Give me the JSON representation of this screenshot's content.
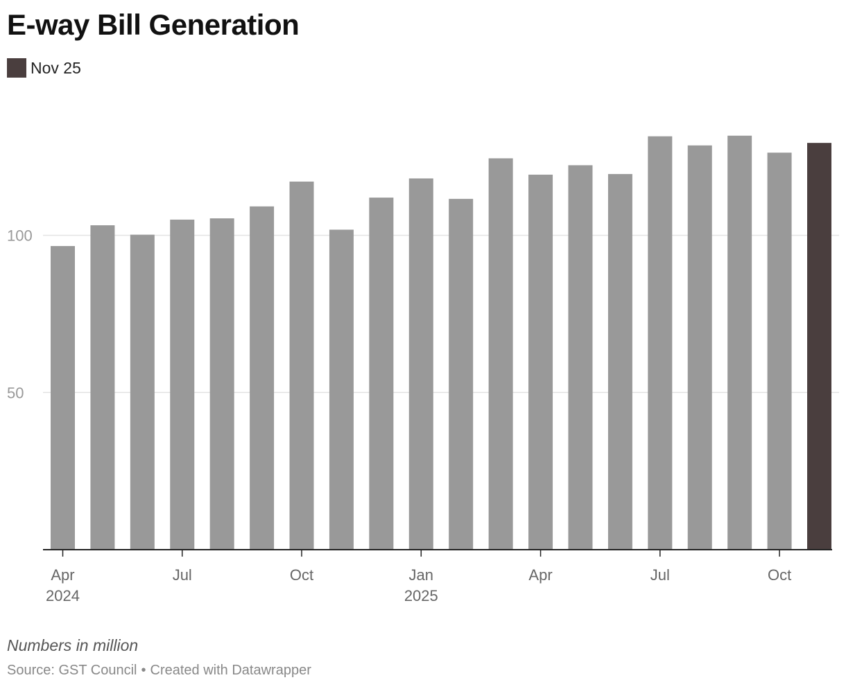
{
  "chart_data": {
    "type": "bar",
    "title": "E-way Bill Generation",
    "legend": [
      {
        "label": "Nov 25",
        "color": "#4a3e3e"
      }
    ],
    "categories": [
      "Apr 2024",
      "May 2024",
      "Jun 2024",
      "Jul 2024",
      "Aug 2024",
      "Sep 2024",
      "Oct 2024",
      "Nov 2024",
      "Dec 2024",
      "Jan 2025",
      "Feb 2025",
      "Mar 2025",
      "Apr 2025",
      "May 2025",
      "Jun 2025",
      "Jul 2025",
      "Aug 2025",
      "Sep 2025",
      "Oct 2025",
      "Nov 2025"
    ],
    "values": [
      96.6,
      103.2,
      100.2,
      105.0,
      105.4,
      109.2,
      117.1,
      101.8,
      112.0,
      118.1,
      111.6,
      124.5,
      119.3,
      122.3,
      119.5,
      131.5,
      128.6,
      131.7,
      126.3,
      129.4
    ],
    "highlight_index": 19,
    "bar_color": "#999999",
    "highlight_color": "#4a3e3e",
    "ylim": [
      0,
      130
    ],
    "yticks": [
      50,
      100
    ],
    "xticks": [
      {
        "index": 0,
        "label": "Apr",
        "sublabel": "2024"
      },
      {
        "index": 3,
        "label": "Jul"
      },
      {
        "index": 6,
        "label": "Oct"
      },
      {
        "index": 9,
        "label": "Jan",
        "sublabel": "2025"
      },
      {
        "index": 12,
        "label": "Apr"
      },
      {
        "index": 15,
        "label": "Jul"
      },
      {
        "index": 18,
        "label": "Oct"
      }
    ],
    "xlabel": "",
    "ylabel": ""
  },
  "notes": {
    "units": "Numbers in million",
    "source": "Source: GST Council",
    "separator": "•",
    "credit": "Created with Datawrapper"
  }
}
